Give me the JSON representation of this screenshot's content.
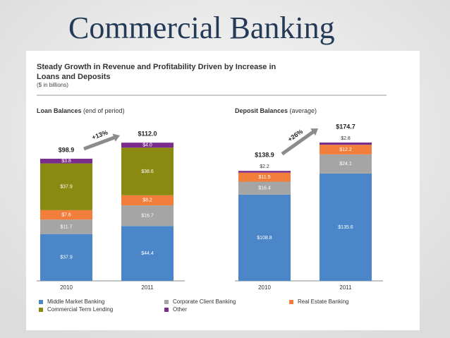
{
  "title": "Commercial Banking",
  "header": {
    "title_line1": "Steady Growth in Revenue and Profitability Driven by Increase in",
    "title_line2": "Loans and Deposits",
    "subtitle": "($ in billions)"
  },
  "chart_data": [
    {
      "type": "bar",
      "stacked": true,
      "title": "Loan Balances",
      "subtitle": "(end of period)",
      "categories": [
        "2010",
        "2011"
      ],
      "series": [
        {
          "name": "Middle Market Banking",
          "color": "#4a86c8",
          "values": [
            37.9,
            44.4
          ],
          "value_labels": [
            "$37.9",
            "$44.4"
          ]
        },
        {
          "name": "Corporate Client Banking",
          "color": "#a5a5a5",
          "values": [
            11.7,
            16.7
          ],
          "value_labels": [
            "$11.7",
            "$16.7"
          ]
        },
        {
          "name": "Real Estate Banking",
          "color": "#f27e3b",
          "values": [
            7.6,
            8.2
          ],
          "value_labels": [
            "$7.6",
            "$8.2"
          ]
        },
        {
          "name": "Commercial Term Lending",
          "color": "#8a8a12",
          "values": [
            37.9,
            38.6
          ],
          "value_labels": [
            "$37.9",
            "$38.6"
          ]
        },
        {
          "name": "Other",
          "color": "#7b2d8e",
          "values": [
            3.8,
            4.0
          ],
          "value_labels": [
            "$3.8",
            "$4.0"
          ]
        }
      ],
      "totals": [
        98.9,
        112.0
      ],
      "total_labels": [
        "$98.9",
        "$112.0"
      ],
      "annotation": "+13%"
    },
    {
      "type": "bar",
      "stacked": true,
      "title": "Deposit Balances",
      "subtitle": "(average)",
      "categories": [
        "2010",
        "2011"
      ],
      "series": [
        {
          "name": "Middle Market Banking",
          "color": "#4a86c8",
          "values": [
            108.8,
            135.6
          ],
          "value_labels": [
            "$108.8",
            "$135.6"
          ]
        },
        {
          "name": "Corporate Client Banking",
          "color": "#a5a5a5",
          "values": [
            16.4,
            24.1
          ],
          "value_labels": [
            "$16.4",
            "$24.1"
          ]
        },
        {
          "name": "Real Estate Banking",
          "color": "#f27e3b",
          "values": [
            11.5,
            12.2
          ],
          "value_labels": [
            "$11.5",
            "$12.2"
          ]
        },
        {
          "name": "Other",
          "color": "#7b2d8e",
          "values": [
            2.2,
            2.8
          ],
          "value_labels": [
            "$2.2",
            "$2.8"
          ]
        }
      ],
      "totals": [
        138.9,
        174.7
      ],
      "total_labels": [
        "$138.9",
        "$174.7"
      ],
      "annotation": "+26%"
    }
  ]
}
